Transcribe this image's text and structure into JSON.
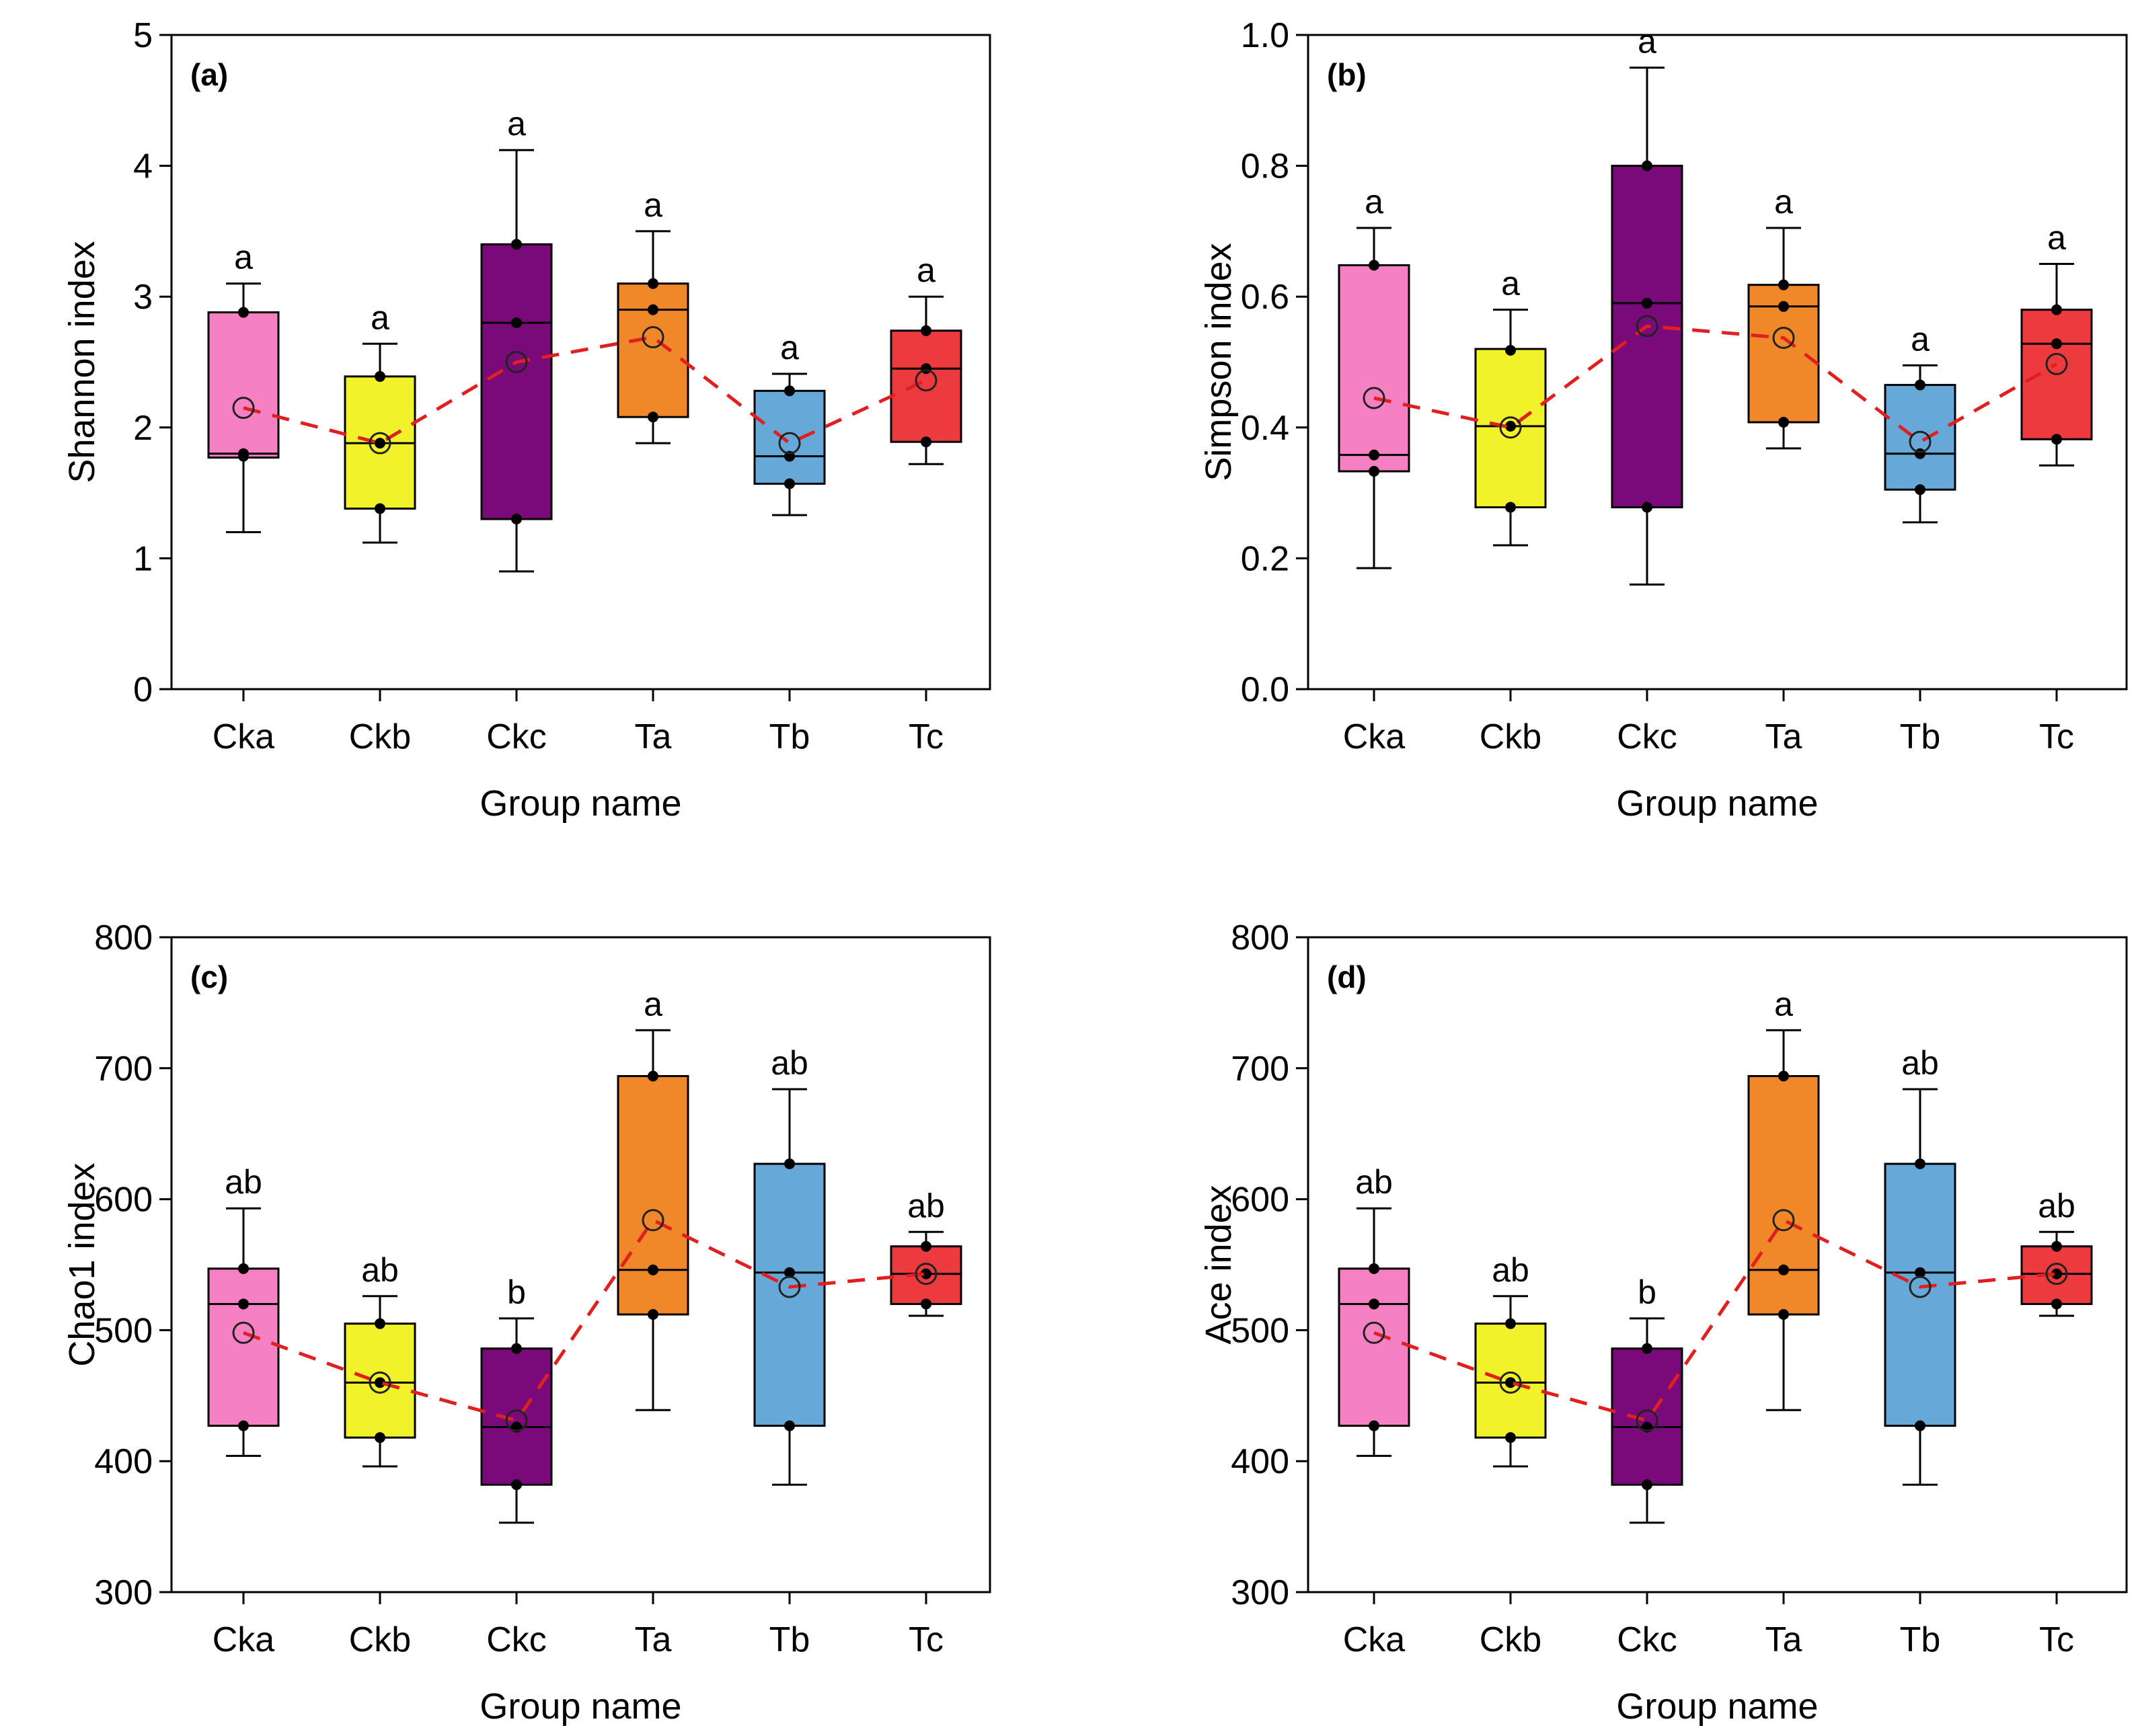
{
  "x_label": "Group name",
  "groups": [
    "Cka",
    "Ckb",
    "Ckc",
    "Ta",
    "Tb",
    "Tc"
  ],
  "colors": {
    "Cka": "#f580c2",
    "Ckb": "#f2f22a",
    "Ckc": "#7a0a7a",
    "Ta": "#f0882a",
    "Tb": "#66a9d8",
    "Tc": "#ec3a3e",
    "mean_line": "#e02020",
    "point": "#000000"
  },
  "chart_data": [
    {
      "type": "box",
      "panel_label": "(a)",
      "title": "",
      "xlabel": "Group name",
      "ylabel": "Shannon index",
      "ylim": [
        0,
        5
      ],
      "yticks": [
        "0",
        "1",
        "2",
        "3",
        "4",
        "5"
      ],
      "ytick_values": [
        0,
        1,
        2,
        3,
        4,
        5
      ],
      "categories": [
        "Cka",
        "Ckb",
        "Ckc",
        "Ta",
        "Tb",
        "Tc"
      ],
      "boxes": [
        {
          "whisker_low": 1.2,
          "q1": 1.77,
          "median": 1.8,
          "q3": 2.88,
          "whisker_high": 3.1,
          "mean": 2.15,
          "points": [
            1.8,
            1.78,
            2.88
          ],
          "letter": "a"
        },
        {
          "whisker_low": 1.12,
          "q1": 1.38,
          "median": 1.88,
          "q3": 2.39,
          "whisker_high": 2.64,
          "mean": 1.88,
          "points": [
            1.38,
            1.88,
            2.39
          ],
          "letter": "a"
        },
        {
          "whisker_low": 0.9,
          "q1": 1.3,
          "median": 2.8,
          "q3": 3.4,
          "whisker_high": 4.12,
          "mean": 2.5,
          "points": [
            1.3,
            2.8,
            3.4
          ],
          "letter": "a"
        },
        {
          "whisker_low": 1.88,
          "q1": 2.08,
          "median": 2.9,
          "q3": 3.1,
          "whisker_high": 3.5,
          "mean": 2.69,
          "points": [
            2.08,
            2.9,
            3.1
          ],
          "letter": "a"
        },
        {
          "whisker_low": 1.33,
          "q1": 1.57,
          "median": 1.78,
          "q3": 2.28,
          "whisker_high": 2.41,
          "mean": 1.88,
          "points": [
            1.57,
            1.78,
            2.28
          ],
          "letter": "a"
        },
        {
          "whisker_low": 1.72,
          "q1": 1.89,
          "median": 2.45,
          "q3": 2.74,
          "whisker_high": 3.0,
          "mean": 2.36,
          "points": [
            1.89,
            2.45,
            2.74
          ],
          "letter": "a"
        }
      ]
    },
    {
      "type": "box",
      "panel_label": "(b)",
      "title": "",
      "xlabel": "Group name",
      "ylabel": "Simpson index",
      "ylim": [
        0,
        1
      ],
      "yticks": [
        "0.0",
        "0.2",
        "0.4",
        "0.6",
        "0.8",
        "1.0"
      ],
      "ytick_values": [
        0,
        0.2,
        0.4,
        0.6,
        0.8,
        1.0
      ],
      "categories": [
        "Cka",
        "Ckb",
        "Ckc",
        "Ta",
        "Tb",
        "Tc"
      ],
      "boxes": [
        {
          "whisker_low": 0.185,
          "q1": 0.333,
          "median": 0.358,
          "q3": 0.648,
          "whisker_high": 0.705,
          "mean": 0.445,
          "points": [
            0.333,
            0.358,
            0.648
          ],
          "letter": "a"
        },
        {
          "whisker_low": 0.22,
          "q1": 0.278,
          "median": 0.402,
          "q3": 0.52,
          "whisker_high": 0.58,
          "mean": 0.4,
          "points": [
            0.278,
            0.402,
            0.518
          ],
          "letter": "a"
        },
        {
          "whisker_low": 0.16,
          "q1": 0.278,
          "median": 0.59,
          "q3": 0.8,
          "whisker_high": 0.95,
          "mean": 0.555,
          "points": [
            0.278,
            0.59,
            0.8
          ],
          "letter": "a"
        },
        {
          "whisker_low": 0.368,
          "q1": 0.408,
          "median": 0.585,
          "q3": 0.618,
          "whisker_high": 0.705,
          "mean": 0.537,
          "points": [
            0.408,
            0.585,
            0.618
          ],
          "letter": "a"
        },
        {
          "whisker_low": 0.255,
          "q1": 0.305,
          "median": 0.36,
          "q3": 0.465,
          "whisker_high": 0.495,
          "mean": 0.378,
          "points": [
            0.305,
            0.36,
            0.465
          ],
          "letter": "a"
        },
        {
          "whisker_low": 0.342,
          "q1": 0.382,
          "median": 0.528,
          "q3": 0.58,
          "whisker_high": 0.65,
          "mean": 0.497,
          "points": [
            0.382,
            0.528,
            0.58
          ],
          "letter": "a"
        }
      ]
    },
    {
      "type": "box",
      "panel_label": "(c)",
      "title": "",
      "xlabel": "Group name",
      "ylabel": "Chao1 index",
      "ylim": [
        300,
        800
      ],
      "yticks": [
        "300",
        "400",
        "500",
        "600",
        "700",
        "800"
      ],
      "ytick_values": [
        300,
        400,
        500,
        600,
        700,
        800
      ],
      "categories": [
        "Cka",
        "Ckb",
        "Ckc",
        "Ta",
        "Tb",
        "Tc"
      ],
      "boxes": [
        {
          "whisker_low": 404,
          "q1": 427,
          "median": 520,
          "q3": 547,
          "whisker_high": 593,
          "mean": 498,
          "points": [
            427,
            520,
            547
          ],
          "letter": "ab"
        },
        {
          "whisker_low": 396,
          "q1": 418,
          "median": 460,
          "q3": 505,
          "whisker_high": 526,
          "mean": 460,
          "points": [
            418,
            460,
            505
          ],
          "letter": "ab"
        },
        {
          "whisker_low": 353,
          "q1": 382,
          "median": 426,
          "q3": 486,
          "whisker_high": 509,
          "mean": 431,
          "points": [
            382,
            426,
            486
          ],
          "letter": "b"
        },
        {
          "whisker_low": 439,
          "q1": 512,
          "median": 546,
          "q3": 694,
          "whisker_high": 729,
          "mean": 584,
          "points": [
            512,
            546,
            694
          ],
          "letter": "a"
        },
        {
          "whisker_low": 382,
          "q1": 427,
          "median": 544,
          "q3": 627,
          "whisker_high": 684,
          "mean": 533,
          "points": [
            427,
            544,
            627
          ],
          "letter": "ab"
        },
        {
          "whisker_low": 511,
          "q1": 520,
          "median": 543,
          "q3": 564,
          "whisker_high": 575,
          "mean": 543,
          "points": [
            520,
            543,
            564
          ],
          "letter": "ab"
        }
      ]
    },
    {
      "type": "box",
      "panel_label": "(d)",
      "title": "",
      "xlabel": "Group name",
      "ylabel": "Ace index",
      "ylim": [
        300,
        800
      ],
      "yticks": [
        "300",
        "400",
        "500",
        "600",
        "700",
        "800"
      ],
      "ytick_values": [
        300,
        400,
        500,
        600,
        700,
        800
      ],
      "categories": [
        "Cka",
        "Ckb",
        "Ckc",
        "Ta",
        "Tb",
        "Tc"
      ],
      "boxes": [
        {
          "whisker_low": 404,
          "q1": 427,
          "median": 520,
          "q3": 547,
          "whisker_high": 593,
          "mean": 498,
          "points": [
            427,
            520,
            547
          ],
          "letter": "ab"
        },
        {
          "whisker_low": 396,
          "q1": 418,
          "median": 460,
          "q3": 505,
          "whisker_high": 526,
          "mean": 460,
          "points": [
            418,
            460,
            505
          ],
          "letter": "ab"
        },
        {
          "whisker_low": 353,
          "q1": 382,
          "median": 426,
          "q3": 486,
          "whisker_high": 509,
          "mean": 431,
          "points": [
            382,
            426,
            486
          ],
          "letter": "b"
        },
        {
          "whisker_low": 439,
          "q1": 512,
          "median": 546,
          "q3": 694,
          "whisker_high": 729,
          "mean": 584,
          "points": [
            512,
            546,
            694
          ],
          "letter": "a"
        },
        {
          "whisker_low": 382,
          "q1": 427,
          "median": 544,
          "q3": 627,
          "whisker_high": 684,
          "mean": 533,
          "points": [
            427,
            544,
            627
          ],
          "letter": "ab"
        },
        {
          "whisker_low": 511,
          "q1": 520,
          "median": 543,
          "q3": 564,
          "whisker_high": 575,
          "mean": 543,
          "points": [
            520,
            543,
            564
          ],
          "letter": "ab"
        }
      ]
    }
  ]
}
